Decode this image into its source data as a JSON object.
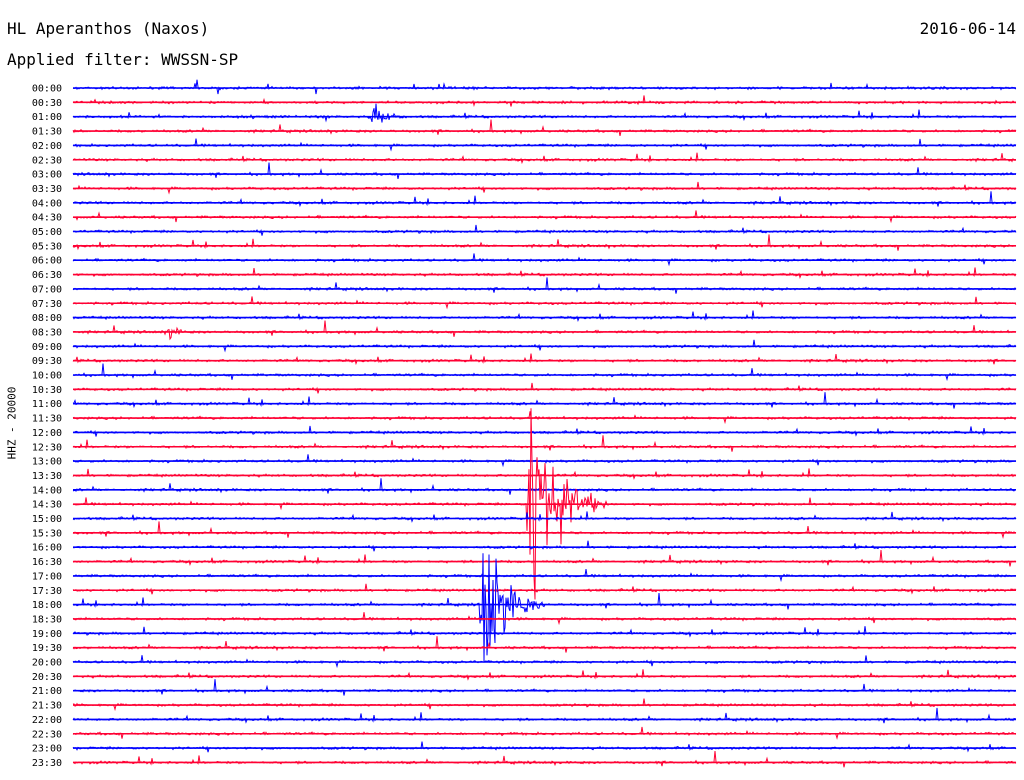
{
  "header": {
    "station": "HL Aperanthos (Naxos)",
    "date": "2016-06-14",
    "filter": "Applied filter: WWSSN-SP",
    "channel": "HHZ - 20000"
  },
  "colors": {
    "even_row": "#0000ff",
    "odd_row": "#ff0033",
    "background": "#ffffff"
  },
  "chart_data": {
    "type": "line",
    "title": "HL Aperanthos (Naxos)",
    "ylabel": "HHZ - 20000",
    "rows": [
      "00:00",
      "00:30",
      "01:00",
      "01:30",
      "02:00",
      "02:30",
      "03:00",
      "03:30",
      "04:00",
      "04:30",
      "05:00",
      "05:30",
      "06:00",
      "06:30",
      "07:00",
      "07:30",
      "08:00",
      "08:30",
      "09:00",
      "09:30",
      "10:00",
      "10:30",
      "11:00",
      "11:30",
      "12:00",
      "12:30",
      "13:00",
      "13:30",
      "14:00",
      "14:30",
      "15:00",
      "15:30",
      "16:00",
      "16:30",
      "17:00",
      "17:30",
      "18:00",
      "18:30",
      "19:00",
      "19:30",
      "20:00",
      "20:30",
      "21:00",
      "21:30",
      "22:00",
      "22:30",
      "23:00",
      "23:30"
    ],
    "row_minutes": 30,
    "events": [
      {
        "row": "01:00",
        "minute": 9.5,
        "amplitude": 12,
        "duration_min": 1.5
      },
      {
        "row": "08:30",
        "minute": 3.0,
        "amplitude": 7,
        "duration_min": 1.2
      },
      {
        "row": "14:30",
        "minute": 14.5,
        "amplitude": 110,
        "duration_min": 2.5
      },
      {
        "row": "18:00",
        "minute": 13.0,
        "amplitude": 75,
        "duration_min": 2.0
      }
    ]
  }
}
